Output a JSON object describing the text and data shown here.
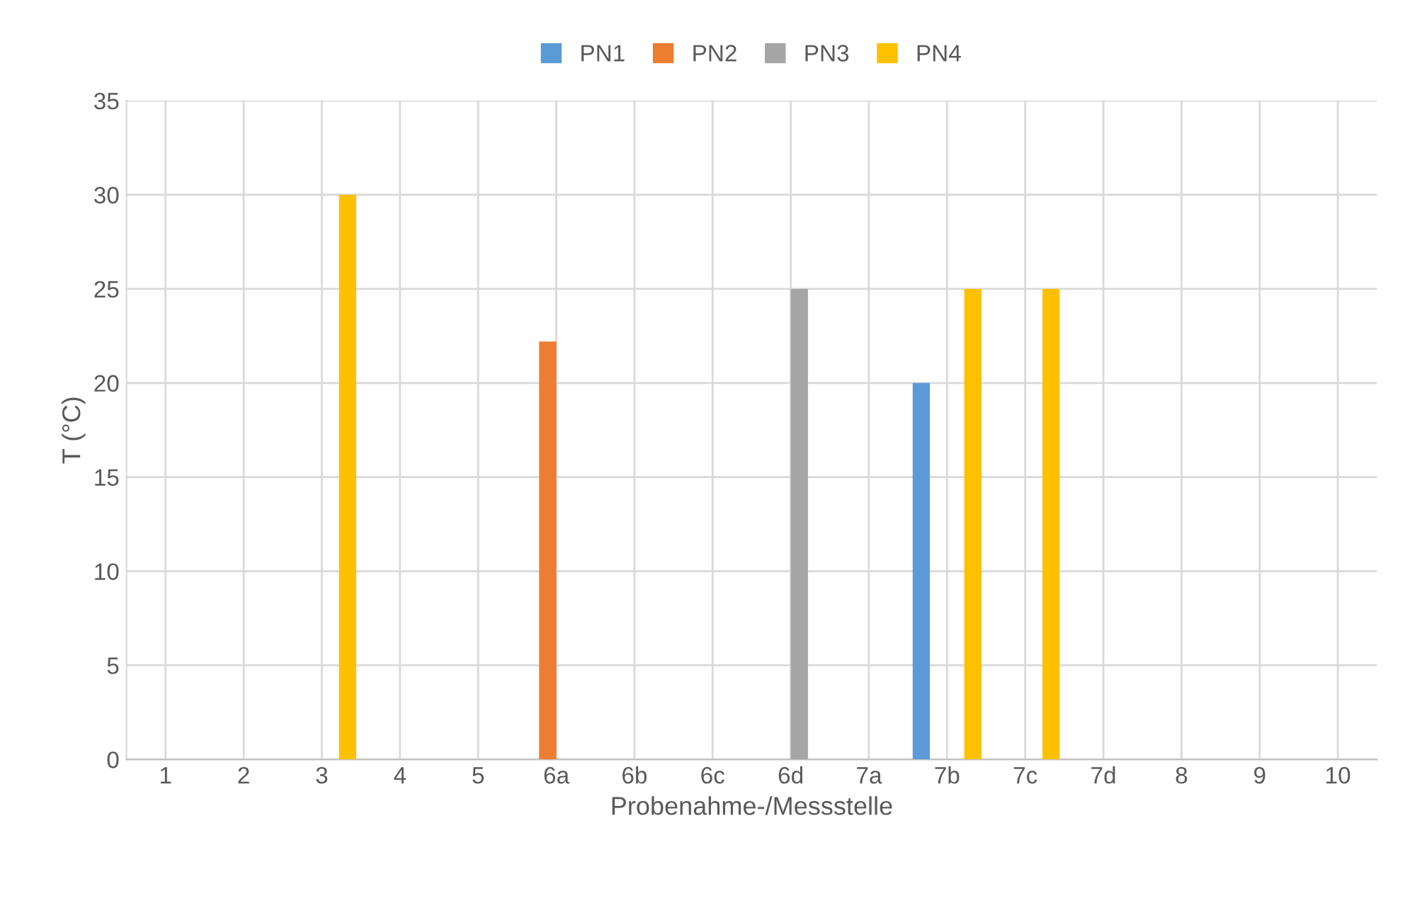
{
  "chart_data": {
    "type": "bar",
    "xlabel": "Probenahme-/Messstelle",
    "ylabel": "T (°C)",
    "categories": [
      "1",
      "2",
      "3",
      "4",
      "5",
      "6a",
      "6b",
      "6c",
      "6d",
      "7a",
      "7b",
      "7c",
      "7d",
      "8",
      "9",
      "10"
    ],
    "series": [
      {
        "name": "PN1",
        "color": "#5b9bd5",
        "values": [
          null,
          null,
          null,
          null,
          null,
          null,
          null,
          null,
          null,
          null,
          20,
          null,
          null,
          null,
          null,
          null
        ]
      },
      {
        "name": "PN2",
        "color": "#ed7d31",
        "values": [
          null,
          null,
          null,
          null,
          null,
          22.2,
          null,
          null,
          null,
          null,
          null,
          null,
          null,
          null,
          null,
          null
        ]
      },
      {
        "name": "PN3",
        "color": "#a5a5a5",
        "values": [
          null,
          null,
          null,
          null,
          null,
          null,
          null,
          null,
          25,
          null,
          null,
          null,
          null,
          null,
          null,
          null
        ]
      },
      {
        "name": "PN4",
        "color": "#ffc000",
        "values": [
          null,
          null,
          30,
          null,
          null,
          null,
          null,
          null,
          null,
          null,
          25,
          25,
          null,
          null,
          null,
          null
        ]
      }
    ],
    "ylim": [
      0,
      35
    ],
    "yticks": [
      0,
      5,
      10,
      15,
      20,
      25,
      30,
      35
    ],
    "grid": true,
    "legend": "top"
  }
}
